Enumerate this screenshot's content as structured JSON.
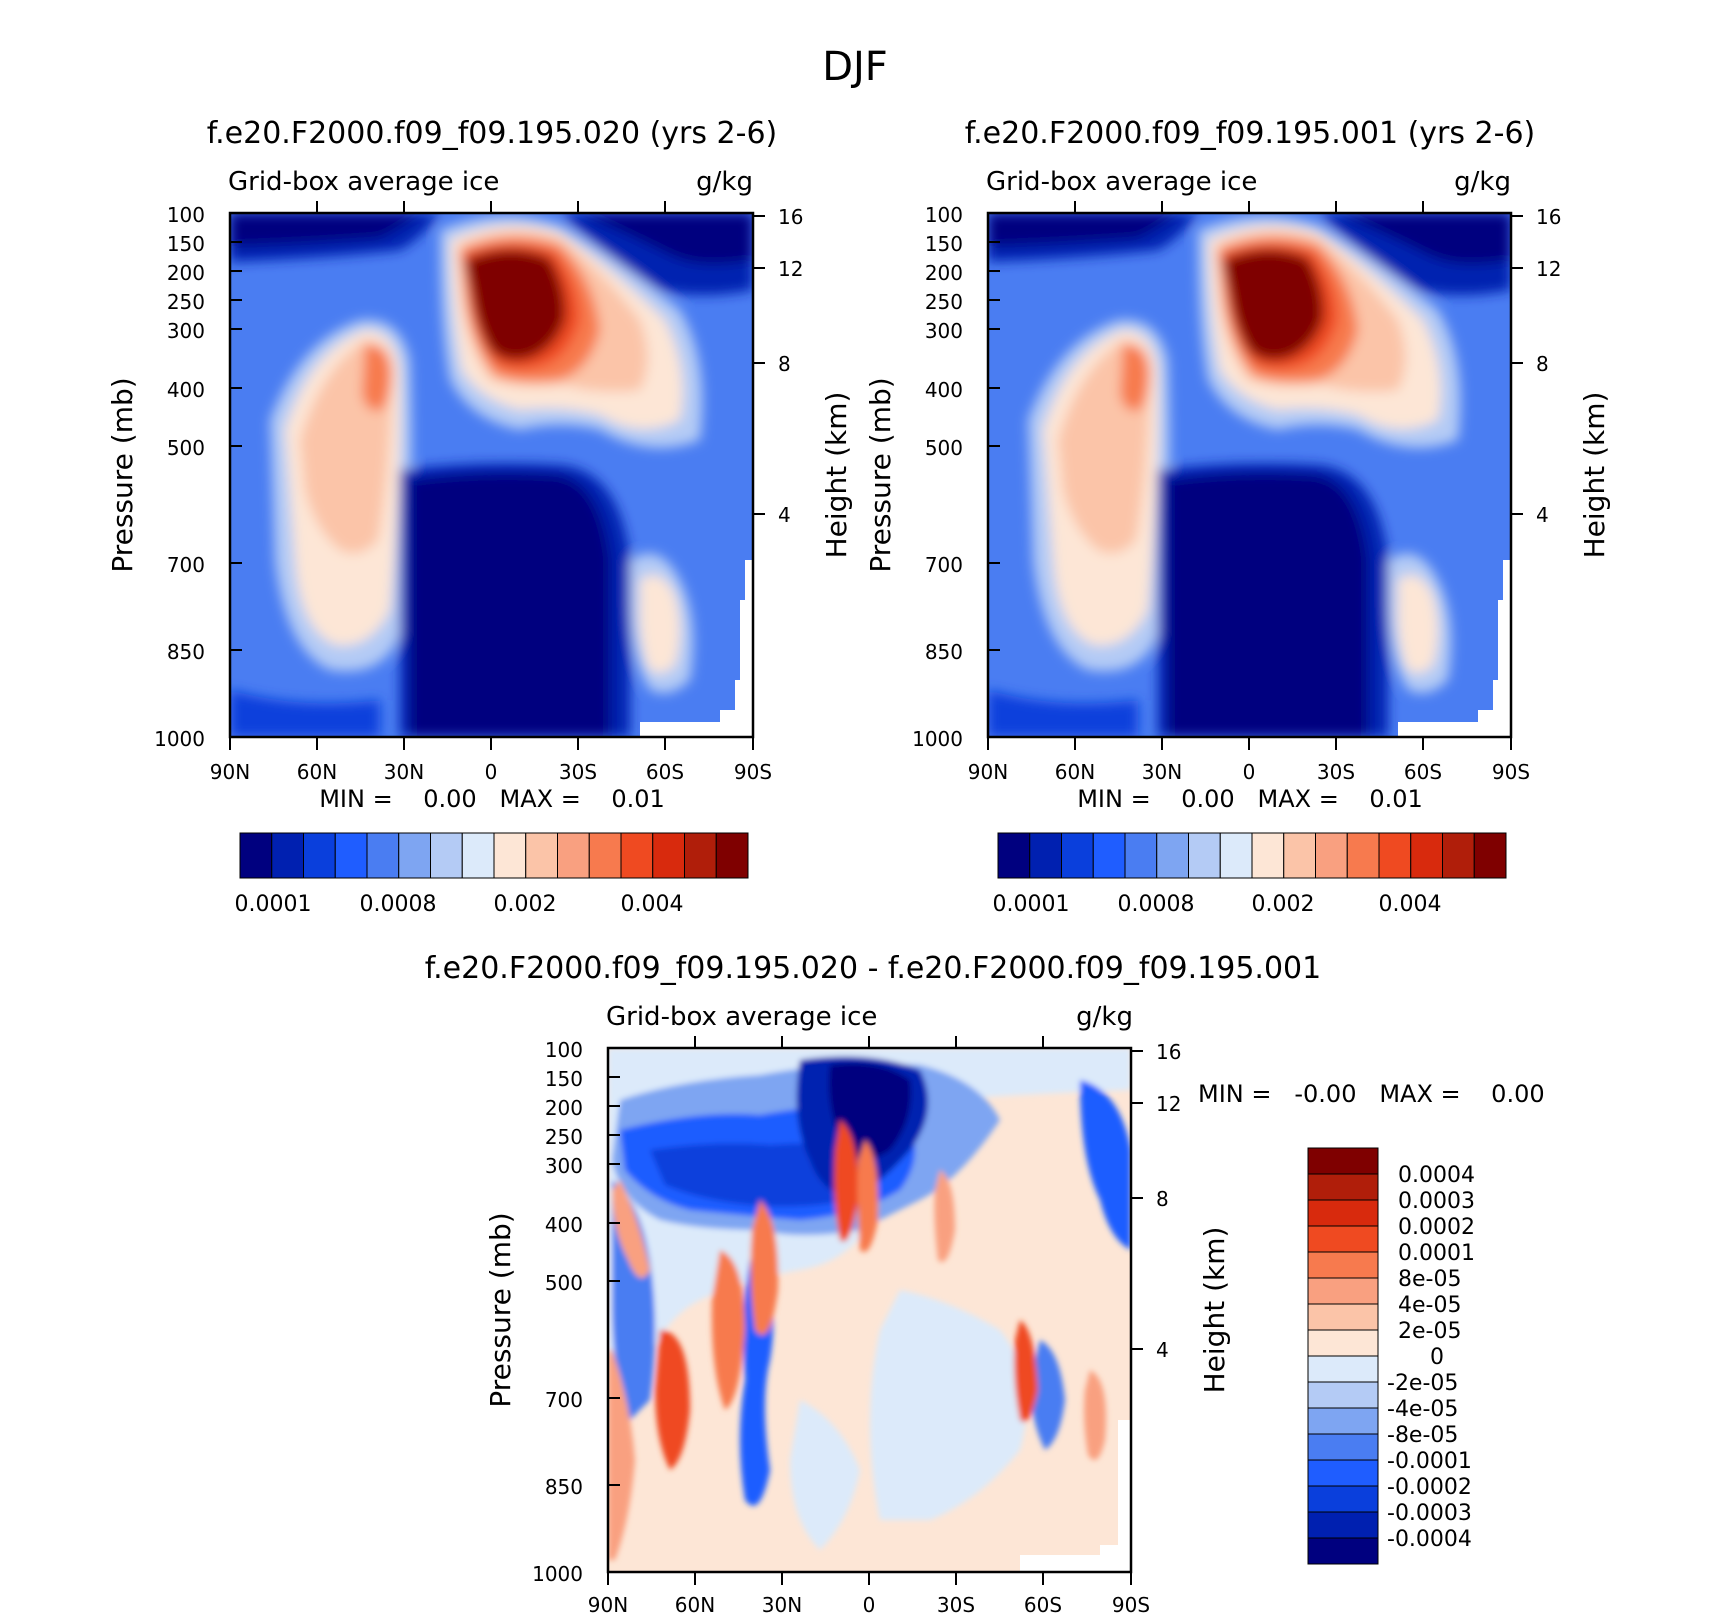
{
  "figure": {
    "title": "DJF"
  },
  "chart_data": [
    {
      "type": "heatmap",
      "title": "f.e20.F2000.f09_f09.195.020 (yrs 2-6)",
      "subtitle_left": "Grid-box average ice",
      "subtitle_right": "g/kg",
      "ylabel": "Pressure (mb)",
      "ylabel_right": "Height (km)",
      "x_ticks": [
        "90N",
        "60N",
        "30N",
        "0",
        "30S",
        "60S",
        "90S"
      ],
      "y_ticks": [
        "100",
        "150",
        "200",
        "250",
        "300",
        "400",
        "500",
        "700",
        "850",
        "1000"
      ],
      "y_right_ticks": [
        "16",
        "12",
        "8",
        "4"
      ],
      "min_max": "MIN =    0.00   MAX =    0.01",
      "colorbar_labels": [
        "0.0001",
        "0.0008",
        "0.002",
        "0.004"
      ],
      "colorbar_colors": [
        "#00007f",
        "#0020b0",
        "#0a3fdc",
        "#1f5dff",
        "#4a7df2",
        "#7ea5f2",
        "#b4cbf5",
        "#dceafa",
        "#fde6d6",
        "#fbc4a8",
        "#f9a080",
        "#f77a4e",
        "#ef4a21",
        "#d82a0d",
        "#b01e0a",
        "#7f0000"
      ]
    },
    {
      "type": "heatmap",
      "title": "f.e20.F2000.f09_f09.195.001 (yrs 2-6)",
      "subtitle_left": "Grid-box average ice",
      "subtitle_right": "g/kg",
      "ylabel": "Pressure (mb)",
      "ylabel_right": "Height (km)",
      "x_ticks": [
        "90N",
        "60N",
        "30N",
        "0",
        "30S",
        "60S",
        "90S"
      ],
      "y_ticks": [
        "100",
        "150",
        "200",
        "250",
        "300",
        "400",
        "500",
        "700",
        "850",
        "1000"
      ],
      "y_right_ticks": [
        "16",
        "12",
        "8",
        "4"
      ],
      "min_max": "MIN =    0.00   MAX =    0.01",
      "colorbar_labels": [
        "0.0001",
        "0.0008",
        "0.002",
        "0.004"
      ],
      "colorbar_colors": [
        "#00007f",
        "#0020b0",
        "#0a3fdc",
        "#1f5dff",
        "#4a7df2",
        "#7ea5f2",
        "#b4cbf5",
        "#dceafa",
        "#fde6d6",
        "#fbc4a8",
        "#f9a080",
        "#f77a4e",
        "#ef4a21",
        "#d82a0d",
        "#b01e0a",
        "#7f0000"
      ]
    },
    {
      "type": "heatmap",
      "title": "f.e20.F2000.f09_f09.195.020 - f.e20.F2000.f09_f09.195.001",
      "subtitle_left": "Grid-box average ice",
      "subtitle_right": "g/kg",
      "ylabel": "Pressure (mb)",
      "ylabel_right": "Height (km)",
      "x_ticks": [
        "90N",
        "60N",
        "30N",
        "0",
        "30S",
        "60S",
        "90S"
      ],
      "y_ticks": [
        "100",
        "150",
        "200",
        "250",
        "300",
        "400",
        "500",
        "700",
        "850",
        "1000"
      ],
      "y_right_ticks": [
        "16",
        "12",
        "8",
        "4"
      ],
      "min_max": "MIN =   -0.00   MAX =    0.00",
      "colorbar_labels": [
        "0.0004",
        "0.0003",
        "0.0002",
        "0.0001",
        "8e-05",
        "4e-05",
        "2e-05",
        "0",
        "-2e-05",
        "-4e-05",
        "-8e-05",
        "-0.0001",
        "-0.0002",
        "-0.0003",
        "-0.0004"
      ],
      "colorbar_colors": [
        "#7f0000",
        "#b01e0a",
        "#d82a0d",
        "#ef4a21",
        "#f77a4e",
        "#f9a080",
        "#fbc4a8",
        "#fde6d6",
        "#dceafa",
        "#b4cbf5",
        "#7ea5f2",
        "#4a7df2",
        "#1f5dff",
        "#0a3fdc",
        "#0020b0",
        "#00007f"
      ]
    }
  ]
}
